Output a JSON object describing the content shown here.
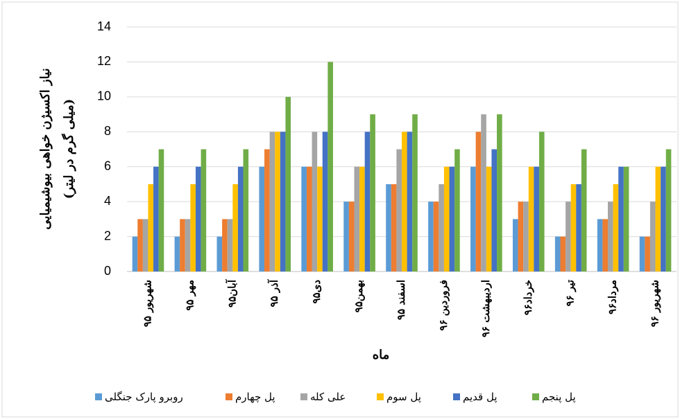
{
  "chart_data": {
    "type": "bar",
    "ylabel": [
      "نیاز اکسیژن خواهی بیوشیمیایی",
      "(میلی گرم در لیتر)"
    ],
    "xlabel": "ماه",
    "categories": [
      "شهریور ۹۵",
      "مهر ۹۵",
      "آبان۹۵",
      "آذر ۹۵",
      "دی۹۵",
      "بهمن۹۵",
      "اسفند ۹۵",
      "فروردین ۹۶",
      "اردیبهشت ۹۶",
      "خرداد۹۶",
      "تیر ۹۶",
      "مرداد۹۶",
      "شهریور ۹۶"
    ],
    "series": [
      {
        "name": "روبرو پارک جنگلی",
        "color": "#5b9bd5",
        "values": [
          2,
          2,
          2,
          6,
          6,
          4,
          5,
          4,
          6,
          3,
          2,
          3,
          2
        ]
      },
      {
        "name": "پل چهارم",
        "color": "#ed7d31",
        "values": [
          3,
          3,
          3,
          7,
          6,
          4,
          5,
          4,
          8,
          4,
          2,
          3,
          2
        ]
      },
      {
        "name": "علی کله",
        "color": "#a5a5a5",
        "values": [
          3,
          3,
          3,
          8,
          8,
          6,
          7,
          5,
          9,
          4,
          4,
          4,
          4
        ]
      },
      {
        "name": "پل سوم",
        "color": "#ffc000",
        "values": [
          5,
          5,
          5,
          8,
          6,
          6,
          8,
          6,
          6,
          6,
          5,
          5,
          6
        ]
      },
      {
        "name": "پل قدیم",
        "color": "#4472c4",
        "values": [
          6,
          6,
          6,
          8,
          8,
          8,
          8,
          6,
          7,
          6,
          5,
          6,
          6
        ]
      },
      {
        "name": "پل پنجم",
        "color": "#70ad47",
        "values": [
          7,
          7,
          7,
          10,
          12,
          9,
          9,
          7,
          9,
          8,
          7,
          6,
          7
        ]
      }
    ],
    "ylim": [
      0,
      14
    ],
    "yticks": [
      0,
      2,
      4,
      6,
      8,
      10,
      12,
      14
    ],
    "grid": true,
    "legend": "bottom"
  }
}
